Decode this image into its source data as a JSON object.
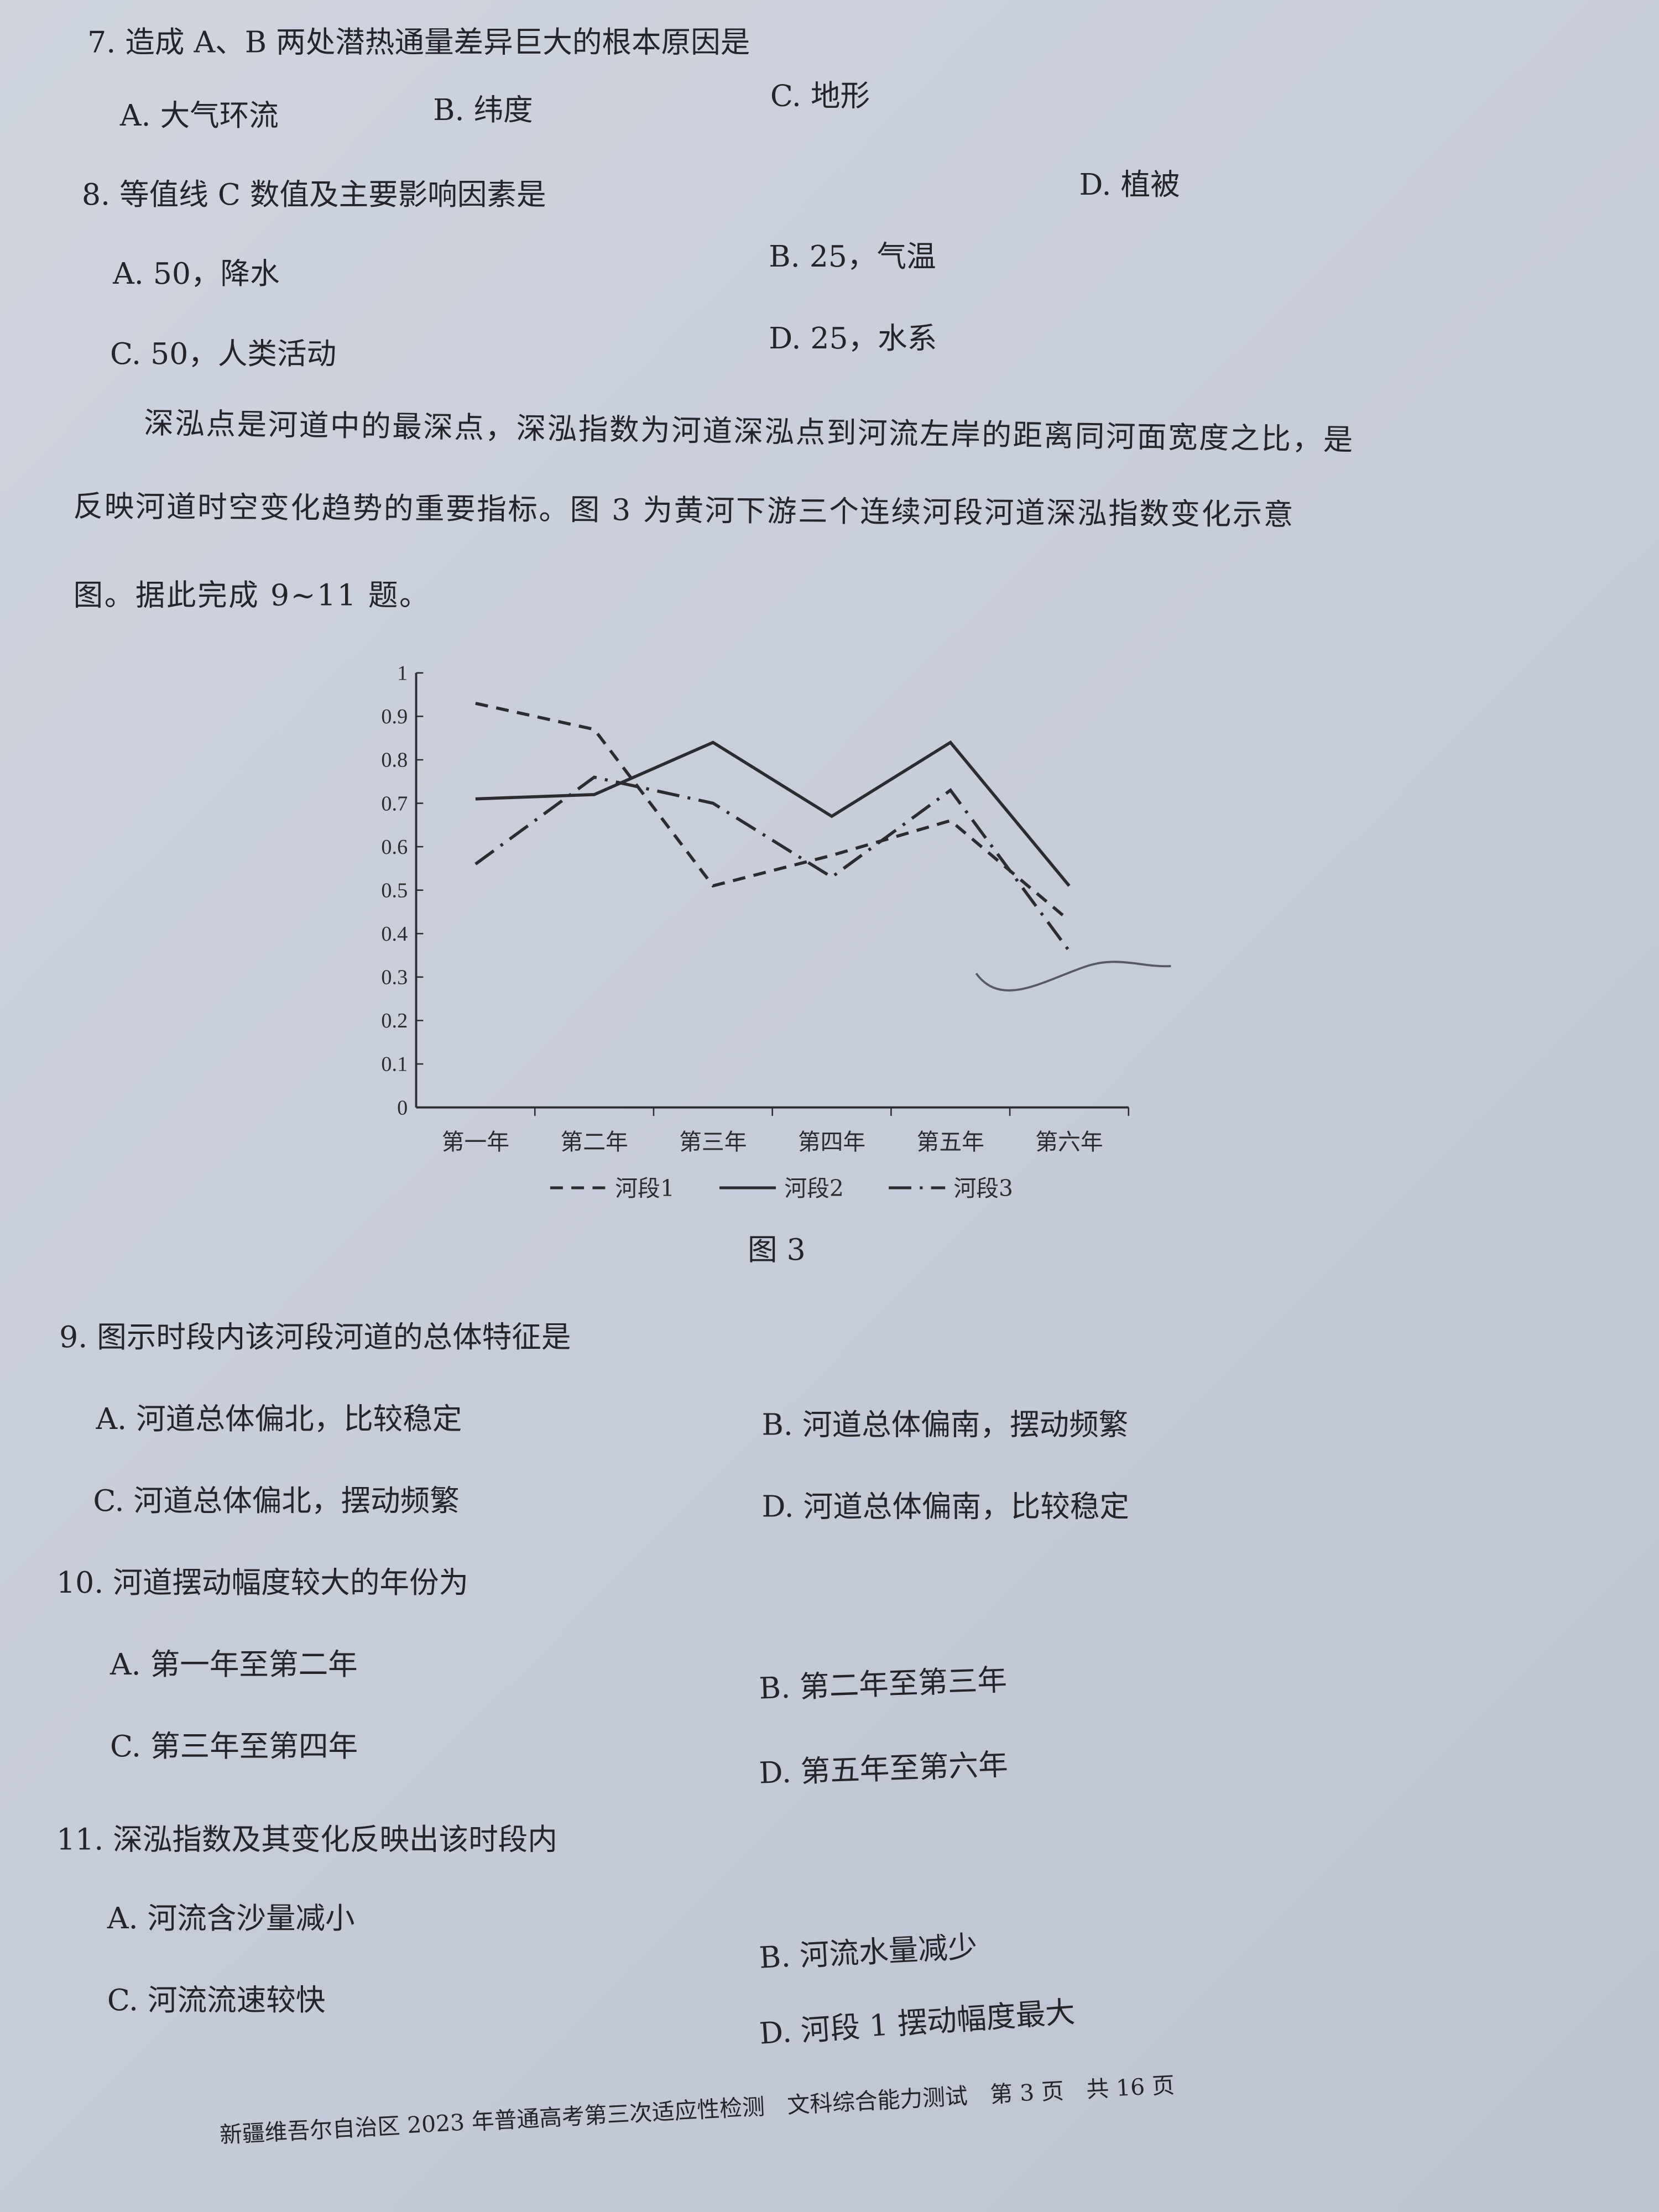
{
  "questions": {
    "q7": {
      "stem": "7. 造成 A、B 两处潜热通量差异巨大的根本原因是",
      "a": "A. 大气环流",
      "b": "B. 纬度",
      "c": "C. 地形",
      "d": "D. 植被"
    },
    "q8": {
      "stem": "8. 等值线 C 数值及主要影响因素是",
      "a": "A. 50，降水",
      "b": "B. 25，气温",
      "c": "C. 50，人类活动",
      "d": "D. 25，水系"
    },
    "passage": [
      "深泓点是河道中的最深点，深泓指数为河道深泓点到河流左岸的距离同河面宽度之比，是",
      "反映河道时空变化趋势的重要指标。图 3 为黄河下游三个连续河段河道深泓指数变化示意",
      "图。据此完成 9~11 题。"
    ],
    "q9": {
      "stem": "9. 图示时段内该河段河道的总体特征是",
      "a": "A. 河道总体偏北，比较稳定",
      "b": "B. 河道总体偏南，摆动频繁",
      "c": "C. 河道总体偏北，摆动频繁",
      "d": "D. 河道总体偏南，比较稳定"
    },
    "q10": {
      "stem": "10. 河道摆动幅度较大的年份为",
      "a": "A. 第一年至第二年",
      "b": "B. 第二年至第三年",
      "c": "C. 第三年至第四年",
      "d": "D. 第五年至第六年"
    },
    "q11": {
      "stem": "11. 深泓指数及其变化反映出该时段内",
      "a": "A. 河流含沙量减小",
      "b": "B. 河流水量减少",
      "c": "C. 河流流速较快",
      "d": "D. 河段 1 摆动幅度最大"
    }
  },
  "figure_caption": "图 3",
  "footer": "新疆维吾尔自治区 2023 年普通高考第三次适应性检测　文科综合能力测试　第 3 页　共 16 页",
  "chart_data": {
    "type": "line",
    "categories": [
      "第一年",
      "第二年",
      "第三年",
      "第四年",
      "第五年",
      "第六年"
    ],
    "ylim": [
      0,
      1
    ],
    "yticks": [
      "0",
      "0.1",
      "0.2",
      "0.3",
      "0.4",
      "0.5",
      "0.6",
      "0.7",
      "0.8",
      "0.9",
      "1"
    ],
    "legend_position": "bottom",
    "series": [
      {
        "name": "河段1",
        "style": "dashed",
        "values": [
          0.93,
          0.87,
          0.51,
          0.58,
          0.66,
          0.43
        ]
      },
      {
        "name": "河段2",
        "style": "solid",
        "values": [
          0.71,
          0.72,
          0.84,
          0.67,
          0.84,
          0.51
        ]
      },
      {
        "name": "河段3",
        "style": "dash-dot",
        "values": [
          0.56,
          0.76,
          0.7,
          0.53,
          0.73,
          0.36
        ]
      }
    ]
  }
}
